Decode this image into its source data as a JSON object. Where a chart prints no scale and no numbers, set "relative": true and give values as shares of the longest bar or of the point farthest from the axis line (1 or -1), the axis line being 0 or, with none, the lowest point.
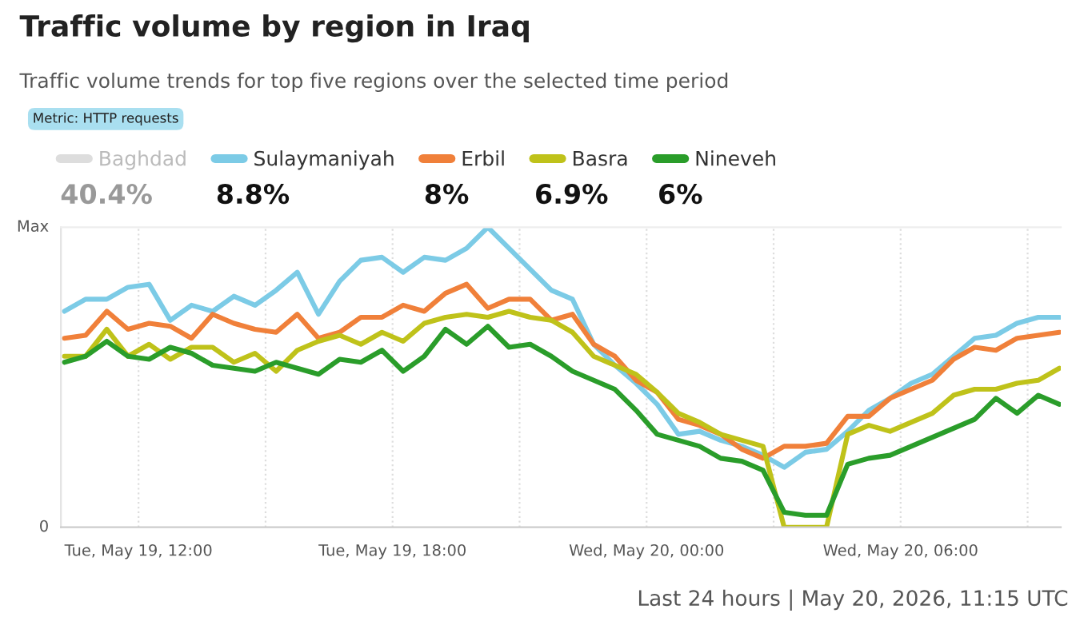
{
  "chart_data": {
    "type": "line",
    "title": "Traffic volume by region in Iraq",
    "subtitle": "Traffic volume trends for top five regions over the selected time period",
    "annotations": [
      "Metric: HTTP requests",
      "40.4%",
      "8.8%",
      "8%",
      "6.9%",
      "6%",
      "Max",
      "0",
      "Last 24 hours | May 20, 2026, 11:15 UTC"
    ],
    "relative": true,
    "x": [
      "2026-05-19T10:15",
      "2026-05-19T10:45",
      "2026-05-19T11:15",
      "2026-05-19T11:45",
      "2026-05-19T12:15",
      "2026-05-19T12:45",
      "2026-05-19T13:15",
      "2026-05-19T13:45",
      "2026-05-19T14:15",
      "2026-05-19T14:45",
      "2026-05-19T15:15",
      "2026-05-19T15:45",
      "2026-05-19T16:15",
      "2026-05-19T16:45",
      "2026-05-19T17:15",
      "2026-05-19T17:45",
      "2026-05-19T18:15",
      "2026-05-19T18:45",
      "2026-05-19T19:15",
      "2026-05-19T19:45",
      "2026-05-19T20:15",
      "2026-05-19T20:45",
      "2026-05-19T21:15",
      "2026-05-19T21:45",
      "2026-05-19T22:15",
      "2026-05-19T22:45",
      "2026-05-19T23:15",
      "2026-05-19T23:45",
      "2026-05-20T00:15",
      "2026-05-20T00:45",
      "2026-05-20T01:15",
      "2026-05-20T01:45",
      "2026-05-20T02:15",
      "2026-05-20T02:45",
      "2026-05-20T03:15",
      "2026-05-20T03:45",
      "2026-05-20T04:15",
      "2026-05-20T04:45",
      "2026-05-20T05:15",
      "2026-05-20T05:45",
      "2026-05-20T06:15",
      "2026-05-20T06:45",
      "2026-05-20T07:15",
      "2026-05-20T07:45",
      "2026-05-20T08:15",
      "2026-05-20T08:45",
      "2026-05-20T09:15",
      "2026-05-20T09:45"
    ],
    "series": [
      {
        "name": "Baghdad",
        "color": "#dddddd",
        "values": [
          null,
          null,
          null,
          null,
          null,
          null,
          null,
          null,
          null,
          null,
          null,
          null,
          null,
          null,
          null,
          null,
          null,
          null,
          null,
          null,
          null,
          null,
          null,
          null,
          null,
          null,
          null,
          null,
          null,
          null,
          null,
          null,
          null,
          null,
          null,
          null,
          null,
          null,
          null,
          null,
          null,
          null,
          null,
          null,
          null,
          null,
          null,
          null
        ]
      },
      {
        "name": "Sulaymaniyah",
        "color": "#7ccbe6",
        "values": [
          0.72,
          0.76,
          0.76,
          0.8,
          0.81,
          0.69,
          0.74,
          0.72,
          0.77,
          0.74,
          0.79,
          0.85,
          0.71,
          0.82,
          0.89,
          0.9,
          0.85,
          0.9,
          0.89,
          0.93,
          1.0,
          0.93,
          0.86,
          0.79,
          0.76,
          0.61,
          0.54,
          0.48,
          0.41,
          0.31,
          0.32,
          0.29,
          0.27,
          0.24,
          0.2,
          0.25,
          0.26,
          0.32,
          0.39,
          0.43,
          0.48,
          0.51,
          0.57,
          0.63,
          0.64,
          0.68,
          0.7,
          0.7
        ]
      },
      {
        "name": "Erbil",
        "color": "#f0803a",
        "values": [
          0.63,
          0.64,
          0.72,
          0.66,
          0.68,
          0.67,
          0.63,
          0.71,
          0.68,
          0.66,
          0.65,
          0.71,
          0.63,
          0.65,
          0.7,
          0.7,
          0.74,
          0.72,
          0.78,
          0.81,
          0.73,
          0.76,
          0.76,
          0.69,
          0.71,
          0.61,
          0.57,
          0.49,
          0.45,
          0.36,
          0.34,
          0.31,
          0.26,
          0.23,
          0.27,
          0.27,
          0.28,
          0.37,
          0.37,
          0.43,
          0.46,
          0.49,
          0.56,
          0.6,
          0.59,
          0.63,
          0.64,
          0.65
        ]
      },
      {
        "name": "Basra",
        "color": "#bfc21a",
        "values": [
          0.57,
          0.57,
          0.66,
          0.57,
          0.61,
          0.56,
          0.6,
          0.6,
          0.55,
          0.58,
          0.52,
          0.59,
          0.62,
          0.64,
          0.61,
          0.65,
          0.62,
          0.68,
          0.7,
          0.71,
          0.7,
          0.72,
          0.7,
          0.69,
          0.65,
          0.57,
          0.54,
          0.51,
          0.45,
          0.38,
          0.35,
          0.31,
          0.29,
          0.27,
          0,
          0,
          0,
          0.31,
          0.34,
          0.32,
          0.35,
          0.38,
          0.44,
          0.46,
          0.46,
          0.48,
          0.49,
          0.53
        ]
      },
      {
        "name": "Nineveh",
        "color": "#2a9d2a",
        "values": [
          0.55,
          0.57,
          0.62,
          0.57,
          0.56,
          0.6,
          0.58,
          0.54,
          0.53,
          0.52,
          0.55,
          0.53,
          0.51,
          0.56,
          0.55,
          0.59,
          0.52,
          0.57,
          0.66,
          0.61,
          0.67,
          0.6,
          0.61,
          0.57,
          0.52,
          0.49,
          0.46,
          0.39,
          0.31,
          0.29,
          0.27,
          0.23,
          0.22,
          0.19,
          0.05,
          0.04,
          0.04,
          0.21,
          0.23,
          0.24,
          0.27,
          0.3,
          0.33,
          0.36,
          0.43,
          0.38,
          0.44,
          0.41
        ]
      }
    ],
    "xlim": [
      "2026-05-19T10:10",
      "2026-05-20T09:47"
    ],
    "xticks": [
      {
        "value": "2026-05-19T12:00",
        "label": "Tue, May 19, 12:00"
      },
      {
        "value": "2026-05-19T15:00",
        "label": null
      },
      {
        "value": "2026-05-19T18:00",
        "label": "Tue, May 19, 18:00"
      },
      {
        "value": "2026-05-19T21:00",
        "label": null
      },
      {
        "value": "2026-05-20T00:00",
        "label": "Wed, May 20, 00:00"
      },
      {
        "value": "2026-05-20T03:00",
        "label": null
      },
      {
        "value": "2026-05-20T06:00",
        "label": "Wed, May 20, 06:00"
      },
      {
        "value": "2026-05-20T09:00",
        "label": null
      }
    ],
    "grid": "x",
    "legend": "top left",
    "line_style": "solid",
    "marker": "none"
  }
}
